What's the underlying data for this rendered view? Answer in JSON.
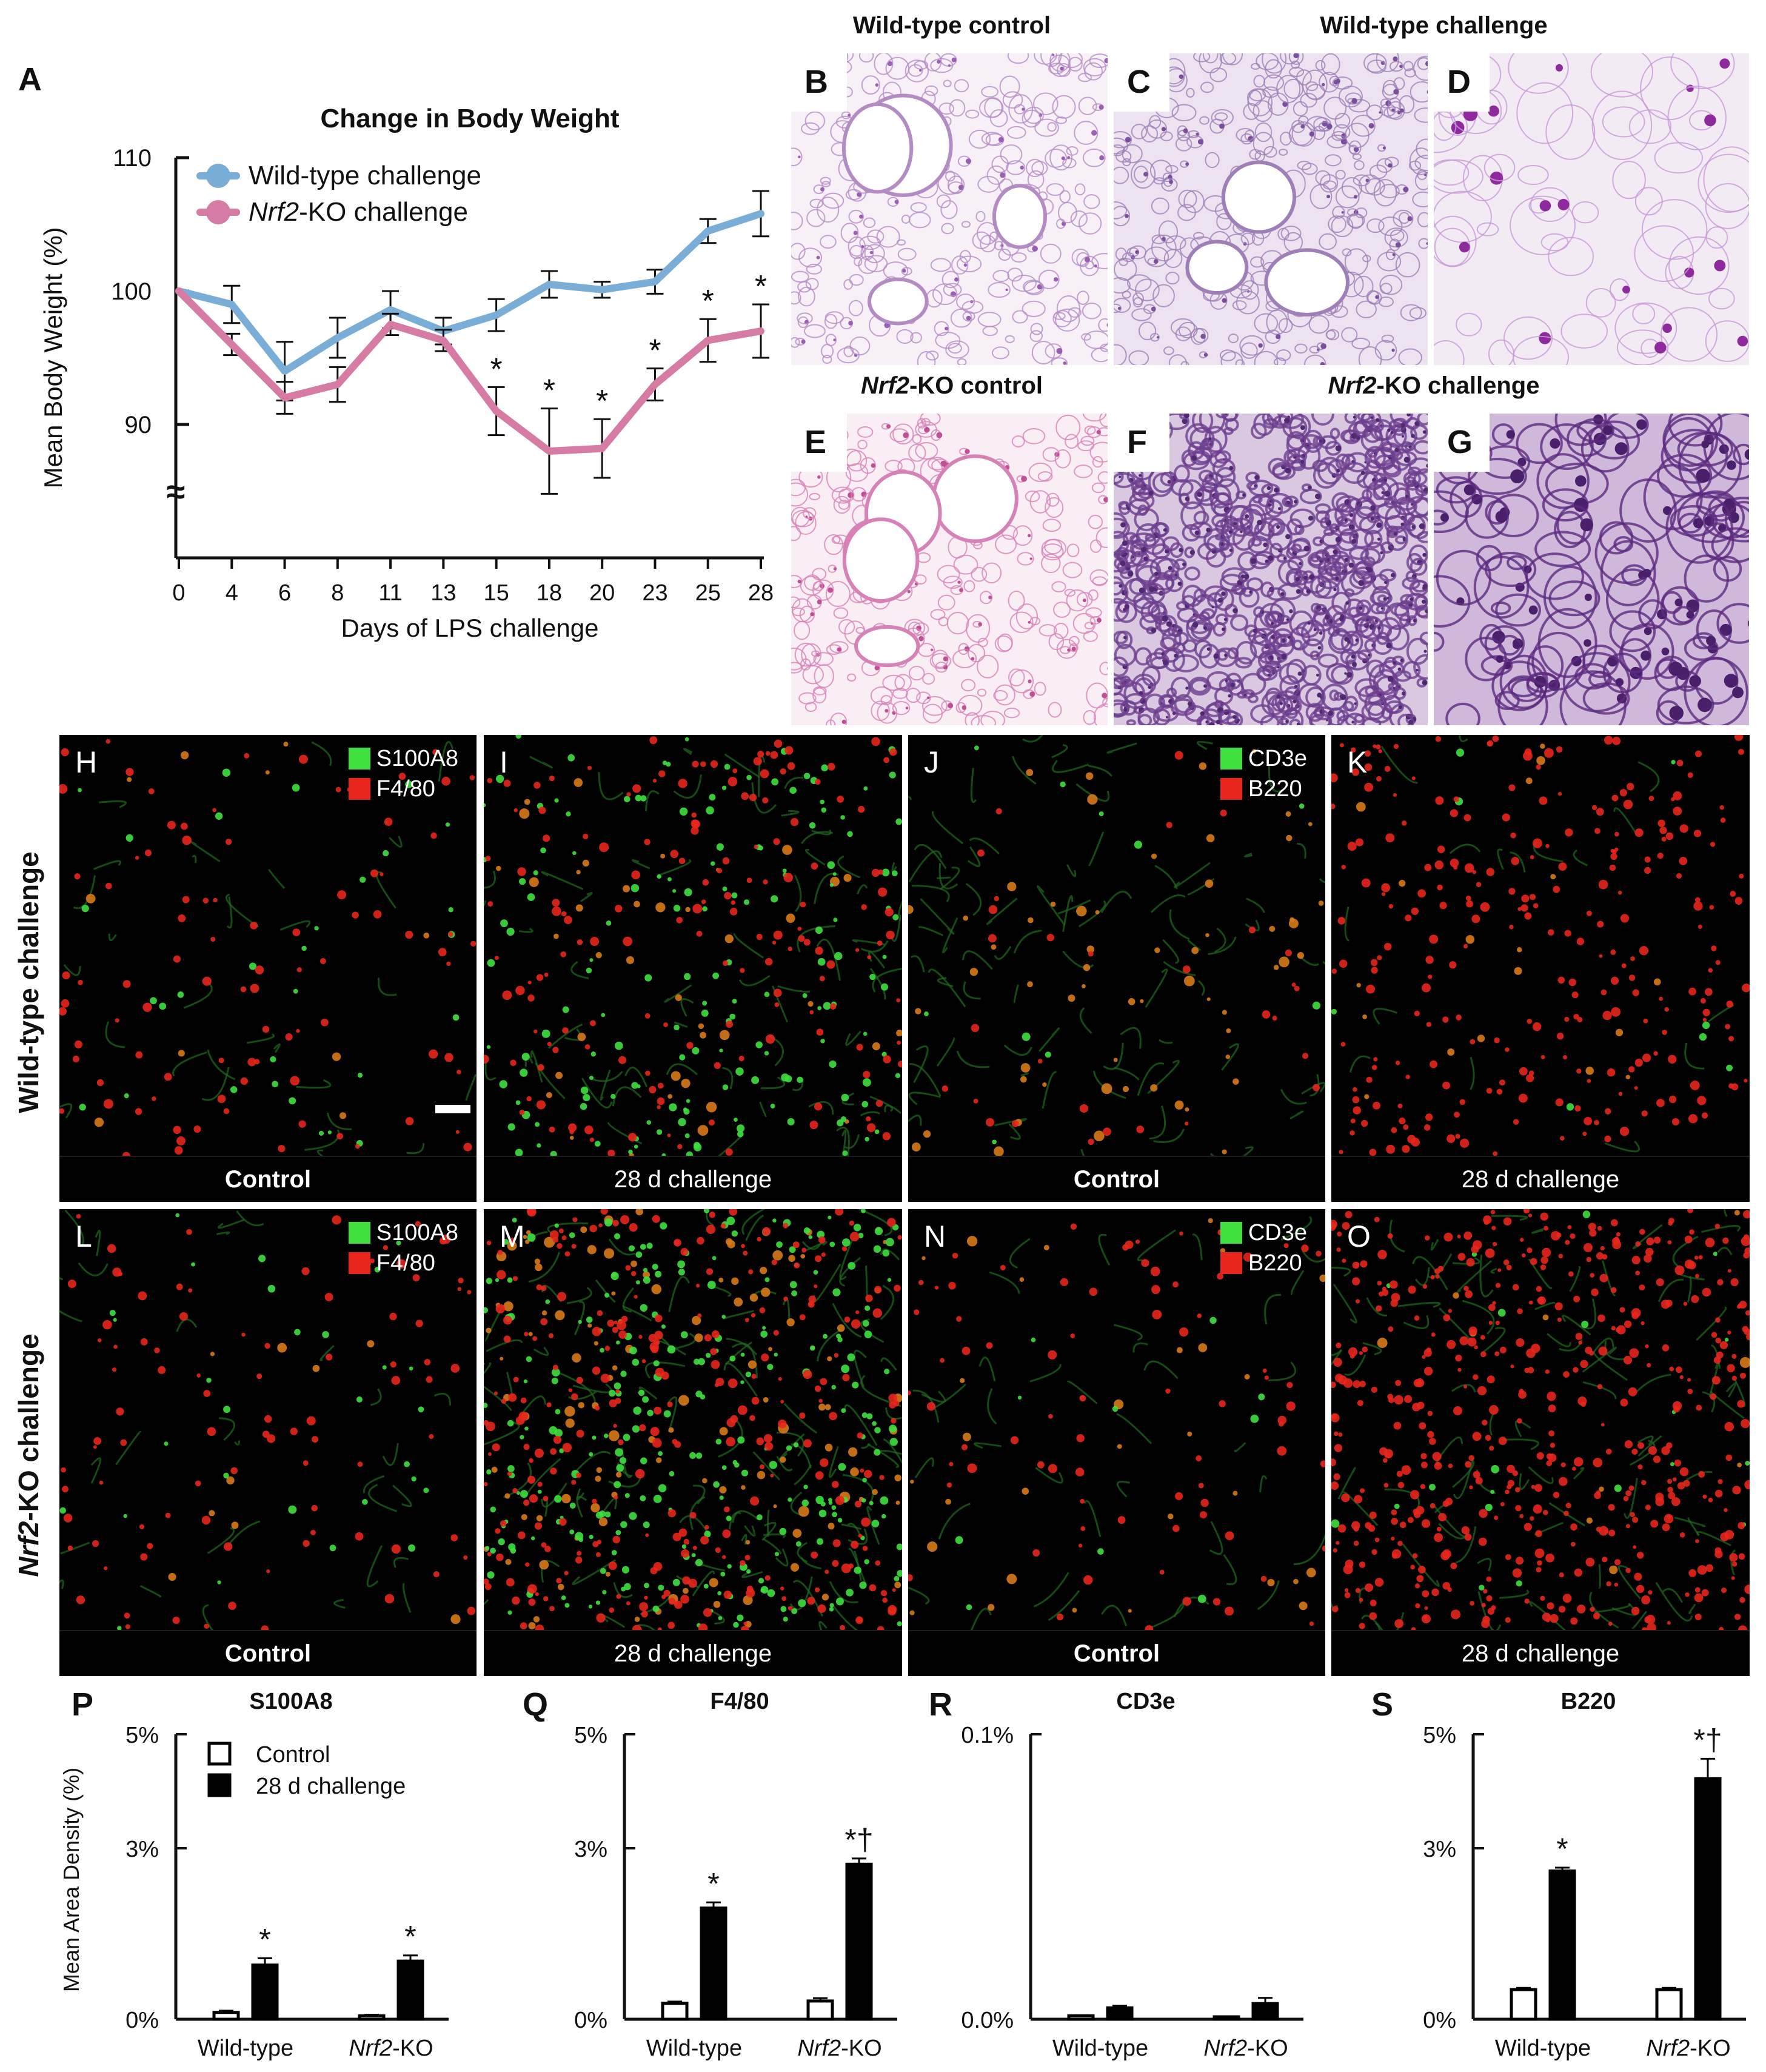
{
  "panel_letters": {
    "A": "A",
    "B": "B",
    "C": "C",
    "D": "D",
    "E": "E",
    "F": "F",
    "G": "G",
    "H": "H",
    "I": "I",
    "J": "J",
    "K": "K",
    "L": "L",
    "M": "M",
    "N": "N",
    "O": "O",
    "P": "P",
    "Q": "Q",
    "R": "R",
    "S": "S"
  },
  "histology": {
    "wt_control_title": "Wild-type control",
    "wt_challenge_title": "Wild-type challenge",
    "ko_control_title_italic": "Nrf2",
    "ko_control_title_rest": "-KO control",
    "ko_challenge_title_italic": "Nrf2",
    "ko_challenge_title_rest": "-KO challenge"
  },
  "fluorescence": {
    "row1_label": "Wild-type challenge",
    "row2_label_italic": "Nrf2",
    "row2_label_rest": "-KO challenge",
    "control_caption": "Control",
    "challenge_caption": "28 d challenge",
    "legend_a_green": "S100A8",
    "legend_a_red": "F4/80",
    "legend_b_green": "CD3e",
    "legend_b_red": "B220"
  },
  "colors": {
    "wildtype_line": "#7aaed6",
    "ko_line": "#d67ba4",
    "green": "#3fe03f",
    "red": "#e8261c"
  },
  "chart_data": [
    {
      "type": "line",
      "title": "Change in Body Weight",
      "xlabel": "Days of LPS challenge",
      "ylabel": "Mean Body Weight (%)",
      "x": [
        "0",
        "4",
        "6",
        "8",
        "11",
        "13",
        "15",
        "18",
        "20",
        "23",
        "25",
        "28"
      ],
      "yticks": [
        "110",
        "100",
        "90"
      ],
      "ylim": [
        82,
        110
      ],
      "axis_break": "≈",
      "series": [
        {
          "name": "Wild-type challenge",
          "name_italic": "",
          "name_rest": "Wild-type challenge",
          "color": "#7aaed6",
          "values": [
            100,
            99,
            94,
            96.5,
            98.6,
            97,
            98.2,
            100.5,
            100.1,
            100.7,
            104.5,
            105.8
          ],
          "err": [
            0,
            1.4,
            2.2,
            1.5,
            1.4,
            1.0,
            1.2,
            1.0,
            0.6,
            0.9,
            0.9,
            1.7
          ]
        },
        {
          "name": "Nrf2-KO challenge",
          "name_italic": "Nrf2",
          "name_rest": "-KO challenge",
          "color": "#d67ba4",
          "values": [
            100,
            96,
            92,
            93,
            97.5,
            96.3,
            91,
            88,
            88.2,
            93,
            96.3,
            97
          ],
          "err": [
            0,
            0.8,
            1.2,
            1.3,
            0.8,
            0.8,
            1.8,
            3.2,
            2.2,
            1.2,
            1.6,
            2.0
          ]
        }
      ],
      "significance": [
        "",
        "",
        "",
        "",
        "",
        "",
        "*",
        "*",
        "*",
        "*",
        "*",
        "*"
      ]
    },
    {
      "type": "bar",
      "title": "S100A8",
      "ylabel": "Mean Area Density (%)",
      "yticks": [
        "5%",
        "3%",
        "0%"
      ],
      "ylim": [
        0,
        5
      ],
      "categories": [
        "Wild-type",
        "Nrf2-KO"
      ],
      "category_italic": [
        "",
        "Nrf2"
      ],
      "category_rest": [
        "Wild-type",
        "-KO"
      ],
      "legend": {
        "control": "Control",
        "challenge": "28 d challenge"
      },
      "series": [
        {
          "name": "Control",
          "values": [
            0.12,
            0.06
          ],
          "err": [
            0.03,
            0.02
          ]
        },
        {
          "name": "28 d challenge",
          "values": [
            0.95,
            1.02
          ],
          "err": [
            0.12,
            0.1
          ]
        }
      ],
      "marks": [
        [
          "",
          ""
        ],
        [
          "*",
          "*"
        ]
      ]
    },
    {
      "type": "bar",
      "title": "F4/80",
      "yticks": [
        "5%",
        "3%",
        "0%"
      ],
      "ylim": [
        0,
        5
      ],
      "categories": [
        "Wild-type",
        "Nrf2-KO"
      ],
      "category_italic": [
        "",
        "Nrf2"
      ],
      "category_rest": [
        "Wild-type",
        "-KO"
      ],
      "series": [
        {
          "name": "Control",
          "values": [
            0.28,
            0.32
          ],
          "err": [
            0.03,
            0.05
          ]
        },
        {
          "name": "28 d challenge",
          "values": [
            1.95,
            2.72
          ],
          "err": [
            0.1,
            0.1
          ]
        }
      ],
      "marks": [
        [
          "",
          ""
        ],
        [
          "*",
          "*†"
        ]
      ]
    },
    {
      "type": "bar",
      "title": "CD3e",
      "yticks": [
        "0.1%",
        "0.0%"
      ],
      "ylim": [
        0,
        0.1
      ],
      "categories": [
        "Wild-type",
        "Nrf2-KO"
      ],
      "category_italic": [
        "",
        "Nrf2"
      ],
      "category_rest": [
        "Wild-type",
        "-KO"
      ],
      "series": [
        {
          "name": "Control",
          "values": [
            0.0012,
            0.0008
          ],
          "err": [
            0.0002,
            0.0002
          ]
        },
        {
          "name": "28 d challenge",
          "values": [
            0.004,
            0.0055
          ],
          "err": [
            0.0008,
            0.002
          ]
        }
      ],
      "marks": [
        [
          "",
          ""
        ],
        [
          "",
          ""
        ]
      ]
    },
    {
      "type": "bar",
      "title": "B220",
      "yticks": [
        "5%",
        "3%",
        "0%"
      ],
      "ylim": [
        0,
        5
      ],
      "categories": [
        "Wild-type",
        "Nrf2-KO"
      ],
      "category_italic": [
        "",
        "Nrf2"
      ],
      "category_rest": [
        "Wild-type",
        "-KO"
      ],
      "series": [
        {
          "name": "Control",
          "values": [
            0.52,
            0.52
          ],
          "err": [
            0.03,
            0.03
          ]
        },
        {
          "name": "28 d challenge",
          "values": [
            2.6,
            4.22
          ],
          "err": [
            0.06,
            0.35
          ]
        }
      ],
      "marks": [
        [
          "",
          ""
        ],
        [
          "*",
          "*†"
        ]
      ]
    }
  ]
}
